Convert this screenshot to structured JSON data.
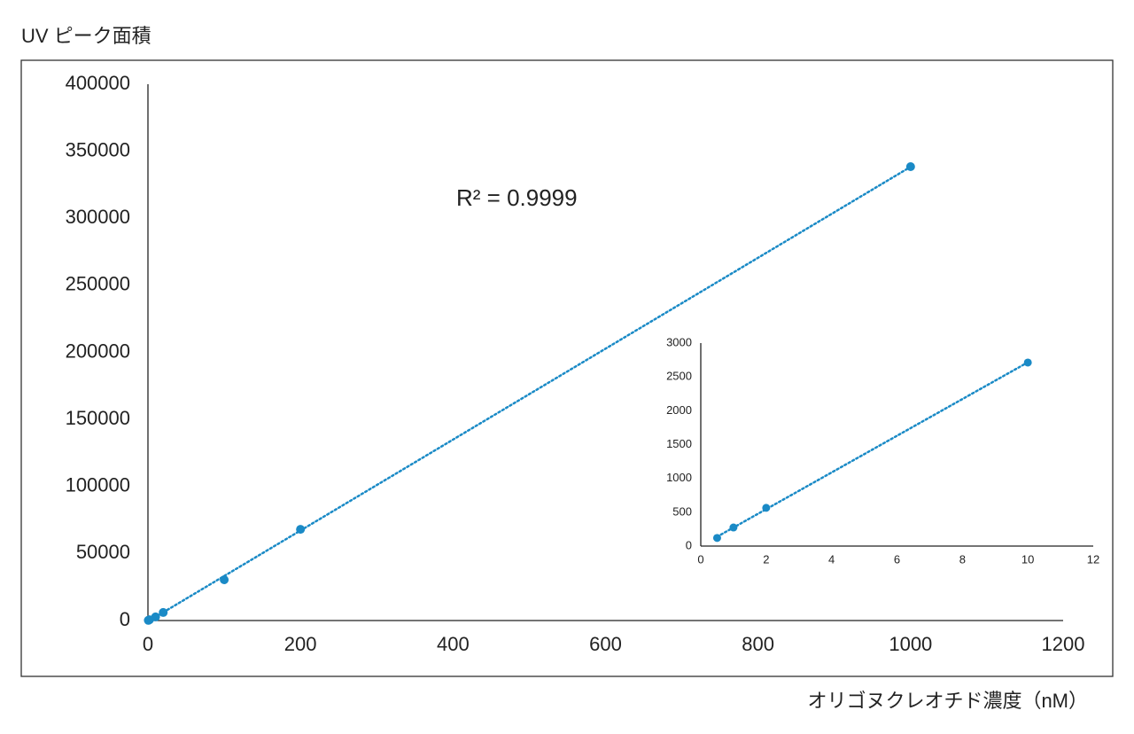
{
  "chart_data": [
    {
      "type": "scatter",
      "y_label": "UV ピーク面積",
      "x_label": "オリゴヌクレオチド濃度（nM）",
      "annotation": "R² = 0.9999",
      "x": [
        0.5,
        1,
        2,
        10,
        20,
        100,
        200,
        1000
      ],
      "series": [
        {
          "color": "#1a8ac6",
          "values": [
            130,
            280,
            570,
            2700,
            6000,
            30400,
            68000,
            338500
          ]
        }
      ],
      "trendline": "linear",
      "xlim": [
        0,
        1200
      ],
      "xticks": [
        0,
        200,
        400,
        600,
        800,
        1000,
        1200
      ],
      "ylim": [
        0,
        400000
      ],
      "yticks": [
        0,
        50000,
        100000,
        150000,
        200000,
        250000,
        300000,
        350000,
        400000
      ],
      "grid": false
    },
    {
      "type": "scatter",
      "x": [
        0.5,
        1,
        2,
        10
      ],
      "series": [
        {
          "color": "#1a8ac6",
          "values": [
            120,
            275,
            565,
            2712
          ]
        }
      ],
      "trendline": "linear",
      "xlim": [
        0,
        12
      ],
      "xticks": [
        0,
        2,
        4,
        6,
        8,
        10,
        12
      ],
      "ylim": [
        0,
        3000
      ],
      "yticks": [
        0,
        500,
        1000,
        1500,
        2000,
        2500,
        3000
      ],
      "grid": false
    }
  ]
}
